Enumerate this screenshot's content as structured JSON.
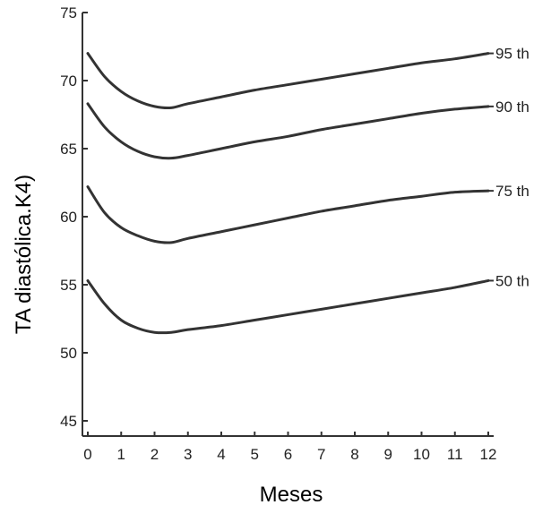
{
  "chart_data": {
    "type": "line",
    "xlabel": "Meses",
    "ylabel": "TA diastólica.K4)",
    "xlim": [
      0,
      12
    ],
    "ylim": [
      45,
      75
    ],
    "x_ticks": [
      "0",
      "1",
      "2",
      "3",
      "4",
      "5",
      "6",
      "7",
      "8",
      "9",
      "10",
      "11",
      "12"
    ],
    "y_ticks": [
      "45",
      "50",
      "55",
      "60",
      "65",
      "70",
      "75"
    ],
    "grid": false,
    "series": [
      {
        "name": "95 th",
        "color": "#333333",
        "x": [
          0,
          0.5,
          1,
          1.5,
          2,
          2.5,
          3,
          4,
          5,
          6,
          7,
          8,
          9,
          10,
          11,
          12
        ],
        "y": [
          72,
          70.3,
          69.2,
          68.5,
          68.1,
          68,
          68.3,
          68.8,
          69.3,
          69.7,
          70.1,
          70.5,
          70.9,
          71.3,
          71.6,
          72
        ]
      },
      {
        "name": "90 th",
        "color": "#333333",
        "x": [
          0,
          0.5,
          1,
          1.5,
          2,
          2.5,
          3,
          4,
          5,
          6,
          7,
          8,
          9,
          10,
          11,
          12
        ],
        "y": [
          68.3,
          66.6,
          65.5,
          64.8,
          64.4,
          64.3,
          64.5,
          65,
          65.5,
          65.9,
          66.4,
          66.8,
          67.2,
          67.6,
          67.9,
          68.1
        ]
      },
      {
        "name": "75 th",
        "color": "#333333",
        "x": [
          0,
          0.5,
          1,
          1.5,
          2,
          2.5,
          3,
          4,
          5,
          6,
          7,
          8,
          9,
          10,
          11,
          12
        ],
        "y": [
          62.2,
          60.3,
          59.2,
          58.6,
          58.2,
          58.1,
          58.4,
          58.9,
          59.4,
          59.9,
          60.4,
          60.8,
          61.2,
          61.5,
          61.8,
          61.9
        ]
      },
      {
        "name": "50 th",
        "color": "#333333",
        "x": [
          0,
          0.5,
          1,
          1.5,
          2,
          2.5,
          3,
          4,
          5,
          6,
          7,
          8,
          9,
          10,
          11,
          12
        ],
        "y": [
          55.3,
          53.6,
          52.4,
          51.8,
          51.5,
          51.5,
          51.7,
          52,
          52.4,
          52.8,
          53.2,
          53.6,
          54,
          54.4,
          54.8,
          55.3
        ]
      }
    ]
  }
}
